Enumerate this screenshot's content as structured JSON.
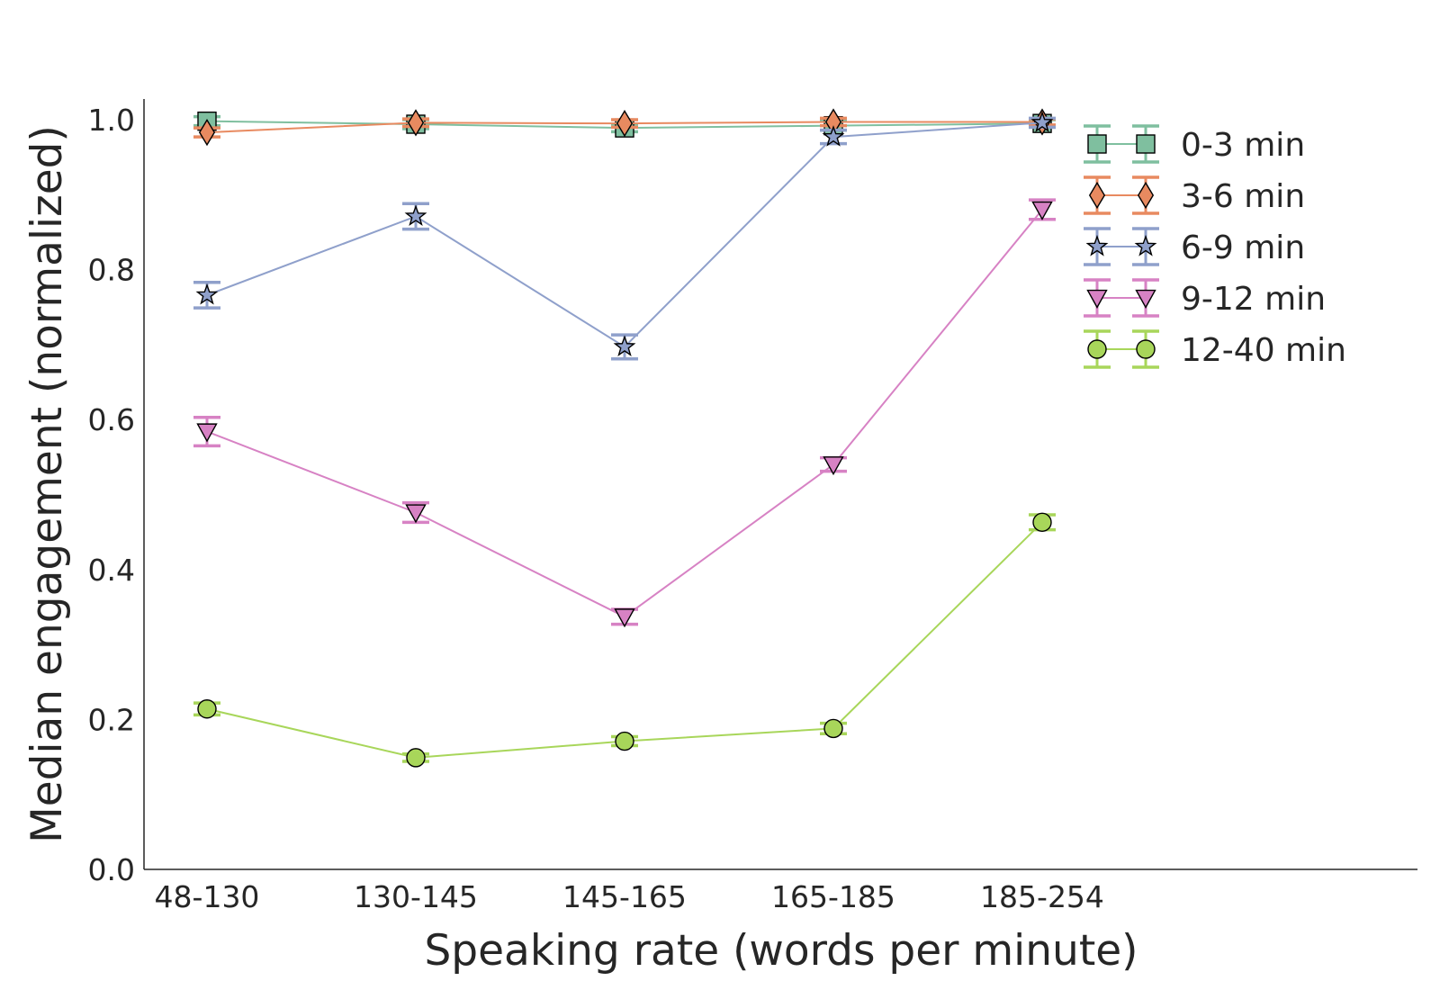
{
  "chart_data": {
    "type": "line",
    "xlabel": "Speaking rate (words per minute)",
    "ylabel": "Median engagement (normalized)",
    "categories": [
      "48-130",
      "130-145",
      "145-165",
      "165-185",
      "185-254"
    ],
    "ylim": [
      0,
      1.0
    ],
    "yticks": [
      "0.0",
      "0.2",
      "0.4",
      "0.6",
      "0.8",
      "1.0"
    ],
    "grid": false,
    "legend_position": "top-right",
    "series": [
      {
        "name": "0-3 min",
        "color": "#7fbf9f",
        "marker": "square",
        "values": [
          0.998,
          0.994,
          0.989,
          0.992,
          0.995
        ],
        "errors": [
          0.006,
          0.006,
          0.005,
          0.006,
          0.005
        ]
      },
      {
        "name": "3-6 min",
        "color": "#e88a60",
        "marker": "diamond",
        "values": [
          0.983,
          0.996,
          0.995,
          0.997,
          0.997
        ],
        "errors": [
          0.006,
          0.005,
          0.005,
          0.005,
          0.004
        ]
      },
      {
        "name": "6-9 min",
        "color": "#8fa0cb",
        "marker": "star",
        "values": [
          0.766,
          0.871,
          0.697,
          0.977,
          0.996
        ],
        "errors": [
          0.017,
          0.017,
          0.016,
          0.009,
          0.006
        ]
      },
      {
        "name": "9-12 min",
        "color": "#d782c4",
        "marker": "triangle-down",
        "values": [
          0.584,
          0.476,
          0.337,
          0.54,
          0.88
        ],
        "errors": [
          0.019,
          0.013,
          0.01,
          0.009,
          0.013
        ]
      },
      {
        "name": "12-40 min",
        "color": "#a8d65a",
        "marker": "circle",
        "values": [
          0.214,
          0.149,
          0.171,
          0.188,
          0.463
        ],
        "errors": [
          0.008,
          0.005,
          0.006,
          0.007,
          0.01
        ]
      }
    ]
  }
}
